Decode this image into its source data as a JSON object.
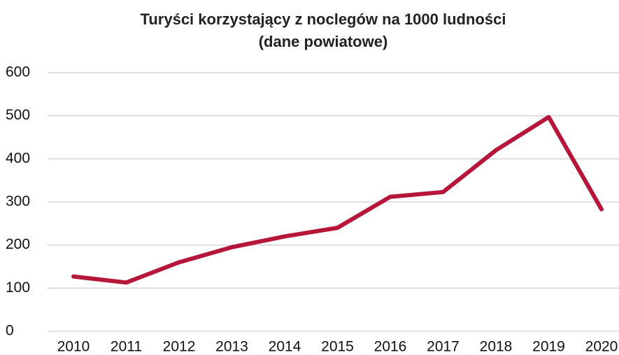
{
  "chart_data": {
    "type": "line",
    "title": "Turyści korzystający z noclegów na 1000 ludności",
    "subtitle": "(dane powiatowe)",
    "categories": [
      "2010",
      "2011",
      "2012",
      "2013",
      "2014",
      "2015",
      "2016",
      "2017",
      "2018",
      "2019",
      "2020"
    ],
    "series": [
      {
        "name": "Turyści korzystający z noclegów na 1000 ludności",
        "color": "#b5163a",
        "values": [
          127,
          113,
          160,
          195,
          220,
          240,
          312,
          323,
          420,
          497,
          283
        ]
      }
    ],
    "ylim": [
      0,
      600
    ],
    "yticks": [
      0,
      100,
      200,
      300,
      400,
      500,
      600
    ],
    "grid": true
  }
}
